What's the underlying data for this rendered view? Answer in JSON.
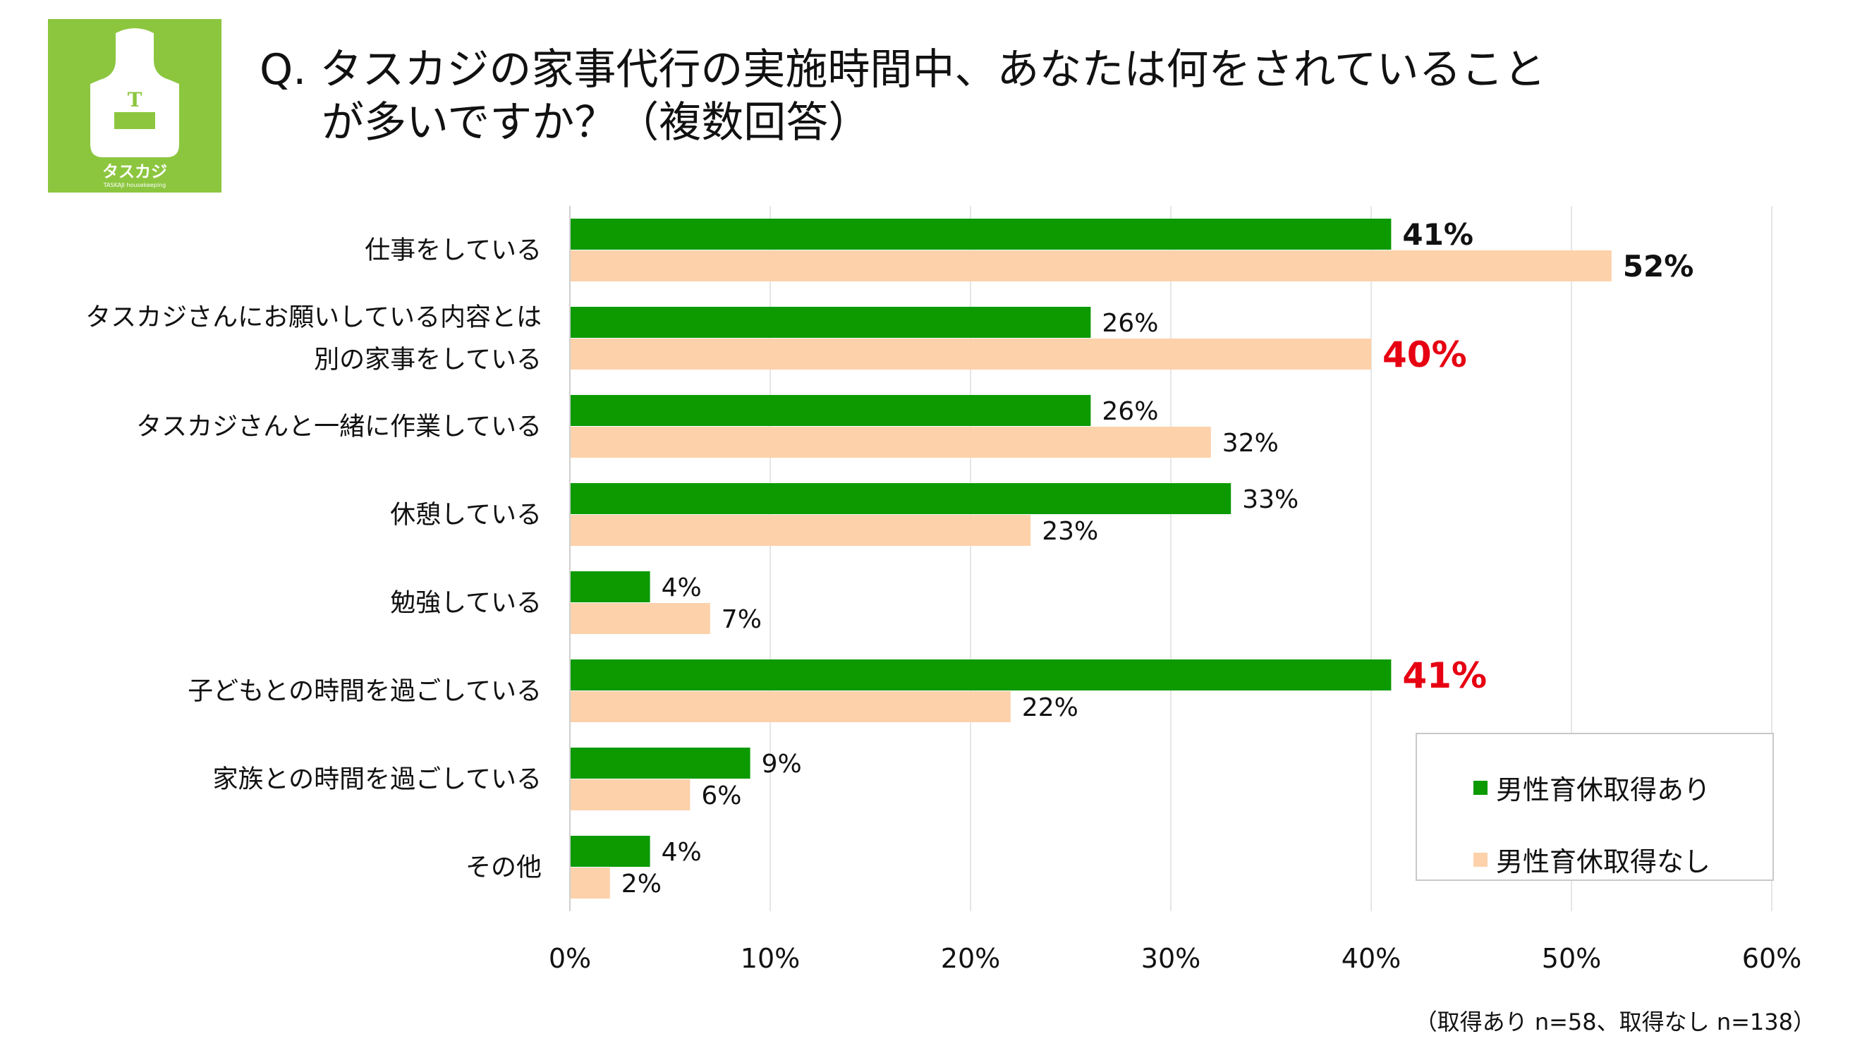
{
  "logo": {
    "letter": "T",
    "name": "タスカジ",
    "tagline": "TASKAJI housekeeping",
    "bg_color": "#8cc63f"
  },
  "title": {
    "line1": "Q. タスカジの家事代行の実施時間中、あなたは何をされていること",
    "line2": "が多いですか？（複数回答）"
  },
  "chart_data": {
    "type": "bar",
    "orientation": "horizontal",
    "categories": [
      [
        "仕事をしている"
      ],
      [
        "タスカジさんにお願いしている内容とは",
        "別の家事をしている"
      ],
      [
        "タスカジさんと一緒に作業している"
      ],
      [
        "休憩している"
      ],
      [
        "勉強している"
      ],
      [
        "子どもとの時間を過ごしている"
      ],
      [
        "家族との時間を過ごしている"
      ],
      [
        "その他"
      ]
    ],
    "series": [
      {
        "name": "男性育休取得あり",
        "color": "#0c9a00",
        "values": [
          41,
          26,
          26,
          33,
          4,
          41,
          9,
          4
        ],
        "labels": [
          "41%",
          "26%",
          "26%",
          "33%",
          "4%",
          "41%",
          "9%",
          "4%"
        ]
      },
      {
        "name": "男性育休取得なし",
        "color": "#fdd1aa",
        "values": [
          52,
          40,
          32,
          23,
          7,
          22,
          6,
          2
        ],
        "labels": [
          "52%",
          "40%",
          "32%",
          "23%",
          "7%",
          "22%",
          "6%",
          "2%"
        ]
      }
    ],
    "highlights": [
      {
        "series": 1,
        "index": 1,
        "color": "#e60012"
      },
      {
        "series": 0,
        "index": 5,
        "color": "#e60012"
      }
    ],
    "emphasized": [
      {
        "series": 0,
        "index": 0
      },
      {
        "series": 1,
        "index": 0
      }
    ],
    "xlim": [
      0,
      60
    ],
    "xticks": [
      0,
      10,
      20,
      30,
      40,
      50,
      60
    ],
    "xtick_labels": [
      "0%",
      "10%",
      "20%",
      "30%",
      "40%",
      "50%",
      "60%"
    ],
    "grid": true,
    "legend_position": "bottom-right"
  },
  "note": "（取得あり n=58、取得なし n=138）"
}
